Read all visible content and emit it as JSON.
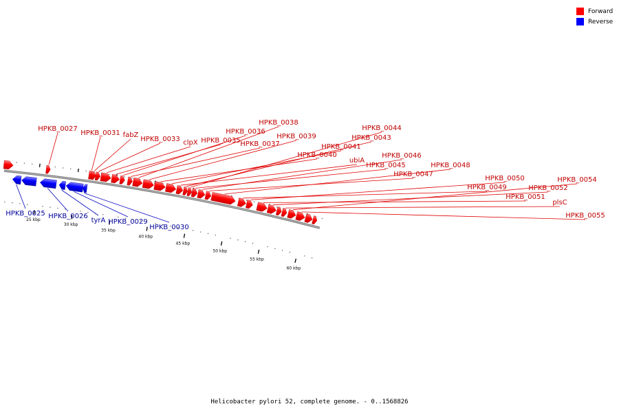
{
  "colors": {
    "forward": "#ff0000",
    "reverse": "#0000ff",
    "forward_text": "#c00000",
    "reverse_text": "#00009a",
    "backbone": "#777777"
  },
  "legend": [
    {
      "label": "Forward",
      "color": "#ff0000"
    },
    {
      "label": "Reverse",
      "color": "#0000ff"
    }
  ],
  "caption": "Helicobacter pylori 52, complete genome. - 0..1568826",
  "scale": {
    "start_kbp": 20.5,
    "end_kbp": 62,
    "major_ticks_kbp": [
      25,
      30,
      35,
      40,
      45,
      50,
      55,
      60
    ],
    "major_labels": [
      "25 kbp",
      "30 kbp",
      "35 kbp",
      "40 kbp",
      "45 kbp",
      "50 kbp",
      "55 kbp",
      "60 kbp"
    ]
  },
  "genes": [
    {
      "name": "",
      "strand": "forward",
      "start": 20.4,
      "end": 21.6,
      "label": false
    },
    {
      "name": "HPKB_0025",
      "strand": "reverse",
      "start": 21.7,
      "end": 22.8
    },
    {
      "name": "",
      "strand": "reverse",
      "start": 22.9,
      "end": 24.8,
      "label": false
    },
    {
      "name": "HPKB_0026",
      "strand": "reverse",
      "start": 25.3,
      "end": 27.4
    },
    {
      "name": "HPKB_0027",
      "strand": "forward",
      "start": 26.0,
      "end": 26.3
    },
    {
      "name": "tyrA",
      "strand": "reverse",
      "start": 27.8,
      "end": 28.6
    },
    {
      "name": "HPKB_0029",
      "strand": "reverse",
      "start": 28.7,
      "end": 30.9
    },
    {
      "name": "HPKB_0030",
      "strand": "reverse",
      "start": 30.9,
      "end": 31.4
    },
    {
      "name": "HPKB_0031",
      "strand": "forward",
      "start": 31.6,
      "end": 31.8
    },
    {
      "name": "fabZ",
      "strand": "forward",
      "start": 31.9,
      "end": 32.2
    },
    {
      "name": "HPKB_0033",
      "strand": "forward",
      "start": 32.3,
      "end": 32.9
    },
    {
      "name": "clpX",
      "strand": "forward",
      "start": 33.0,
      "end": 34.3
    },
    {
      "name": "HPKB_0035",
      "strand": "forward",
      "start": 34.4,
      "end": 35.4
    },
    {
      "name": "HPKB_0036",
      "strand": "forward",
      "start": 35.5,
      "end": 36.1
    },
    {
      "name": "HPKB_0037",
      "strand": "forward",
      "start": 36.5,
      "end": 37.1
    },
    {
      "name": "HPKB_0038",
      "strand": "forward",
      "start": 37.2,
      "end": 38.4
    },
    {
      "name": "HPKB_0039",
      "strand": "forward",
      "start": 38.5,
      "end": 39.9
    },
    {
      "name": "HPKB_0040",
      "strand": "forward",
      "start": 40.0,
      "end": 41.4
    },
    {
      "name": "HPKB_0041",
      "strand": "forward",
      "start": 41.5,
      "end": 42.8
    },
    {
      "name": "ubiA",
      "strand": "forward",
      "start": 42.9,
      "end": 43.7
    },
    {
      "name": "HPKB_0043",
      "strand": "forward",
      "start": 43.8,
      "end": 44.3
    },
    {
      "name": "HPKB_0044",
      "strand": "forward",
      "start": 44.4,
      "end": 44.8
    },
    {
      "name": "HPKB_0045",
      "strand": "forward",
      "start": 44.9,
      "end": 45.6
    },
    {
      "name": "HPKB_0046",
      "strand": "forward",
      "start": 45.7,
      "end": 46.6
    },
    {
      "name": "HPKB_0047",
      "strand": "forward",
      "start": 46.7,
      "end": 47.4
    },
    {
      "name": "HPKB_0048",
      "strand": "forward",
      "start": 47.5,
      "end": 50.6
    },
    {
      "name": "HPKB_0049",
      "strand": "forward",
      "start": 51.0,
      "end": 52.0
    },
    {
      "name": "HPKB_0050",
      "strand": "forward",
      "start": 52.1,
      "end": 52.9
    },
    {
      "name": "HPKB_0051",
      "strand": "forward",
      "start": 53.5,
      "end": 54.8
    },
    {
      "name": "HPKB_0052",
      "strand": "forward",
      "start": 54.9,
      "end": 56.0
    },
    {
      "name": "",
      "strand": "forward",
      "start": 56.1,
      "end": 56.7,
      "label": false
    },
    {
      "name": "plsC",
      "strand": "forward",
      "start": 56.8,
      "end": 57.4
    },
    {
      "name": "HPKB_0054",
      "strand": "forward",
      "start": 57.6,
      "end": 58.6
    },
    {
      "name": "HPKB_0055",
      "strand": "forward",
      "start": 58.7,
      "end": 59.8
    },
    {
      "name": "",
      "strand": "forward",
      "start": 59.9,
      "end": 60.8,
      "label": false
    },
    {
      "name": "",
      "strand": "forward",
      "start": 60.9,
      "end": 61.4,
      "label": false
    }
  ]
}
